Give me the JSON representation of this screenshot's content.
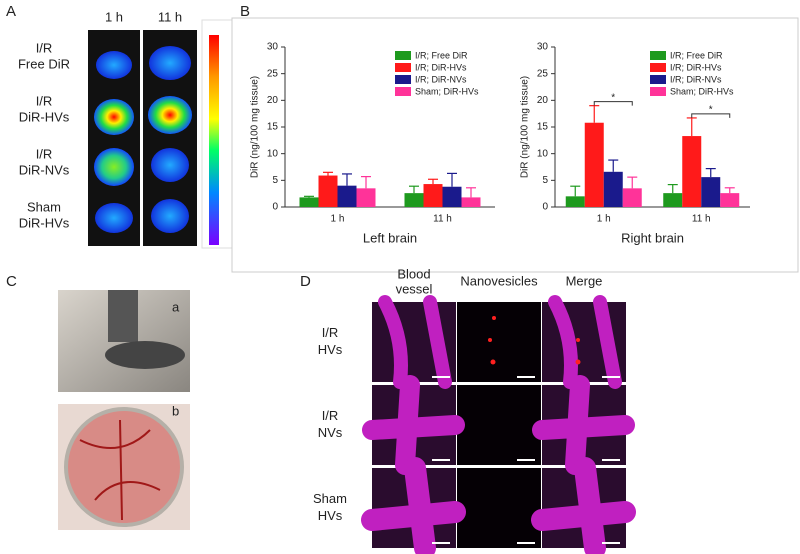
{
  "panel_labels": [
    "A",
    "B",
    "C",
    "D"
  ],
  "panel_a": {
    "columns": [
      "1 h",
      "11 h"
    ],
    "rows": [
      [
        "I/R",
        "Free DiR"
      ],
      [
        "I/R",
        "DiR-HVs"
      ],
      [
        "I/R",
        "DiR-NVs"
      ],
      [
        "Sham",
        "DiR-HVs"
      ]
    ]
  },
  "panel_c": {
    "photo_labels": [
      "a",
      "b"
    ]
  },
  "panel_d": {
    "columns": [
      [
        "Blood",
        "vessel"
      ],
      [
        "Nanovesicles"
      ],
      [
        "Merge"
      ]
    ],
    "rows": [
      [
        "I/R",
        "HVs"
      ],
      [
        "I/R",
        "NVs"
      ],
      [
        "Sham",
        "HVs"
      ]
    ]
  },
  "chart_data": [
    {
      "type": "bar",
      "xlabel": "Left brain",
      "ylabel": "DiR (ng/100 mg tissue)",
      "categories": [
        "1 h",
        "11 h"
      ],
      "ylim": [
        0,
        30
      ],
      "yticks": [
        0,
        5,
        10,
        15,
        20,
        25,
        30
      ],
      "legend": "upper right",
      "series": [
        {
          "name": "I/R; Free DiR",
          "color": "#1e9a1e",
          "values": [
            1.8,
            2.6
          ],
          "errors": [
            0.2,
            1.3
          ]
        },
        {
          "name": "I/R; DiR-HVs",
          "color": "#ff1a1a",
          "values": [
            5.9,
            4.3
          ],
          "errors": [
            0.6,
            0.9
          ]
        },
        {
          "name": "I/R; DiR-NVs",
          "color": "#1a1a8c",
          "values": [
            4.0,
            3.8
          ],
          "errors": [
            2.2,
            2.5
          ]
        },
        {
          "name": "Sham; DiR-HVs",
          "color": "#ff3399",
          "values": [
            3.5,
            1.8
          ],
          "errors": [
            2.2,
            1.8
          ]
        }
      ]
    },
    {
      "type": "bar",
      "xlabel": "Right brain",
      "ylabel": "DiR (ng/100 mg tissue)",
      "categories": [
        "1 h",
        "11 h"
      ],
      "ylim": [
        0,
        30
      ],
      "yticks": [
        0,
        5,
        10,
        15,
        20,
        25,
        30
      ],
      "legend": "upper right",
      "annotations": [
        "*",
        "*"
      ],
      "series": [
        {
          "name": "I/R; Free DiR",
          "color": "#1e9a1e",
          "values": [
            2.0,
            2.6
          ],
          "errors": [
            1.9,
            1.6
          ]
        },
        {
          "name": "I/R; DiR-HVs",
          "color": "#ff1a1a",
          "values": [
            15.8,
            13.3
          ],
          "errors": [
            3.2,
            3.4
          ]
        },
        {
          "name": "I/R; DiR-NVs",
          "color": "#1a1a8c",
          "values": [
            6.6,
            5.6
          ],
          "errors": [
            2.2,
            1.6
          ]
        },
        {
          "name": "Sham; DiR-HVs",
          "color": "#ff3399",
          "values": [
            3.5,
            2.6
          ],
          "errors": [
            2.1,
            1.0
          ]
        }
      ]
    }
  ]
}
